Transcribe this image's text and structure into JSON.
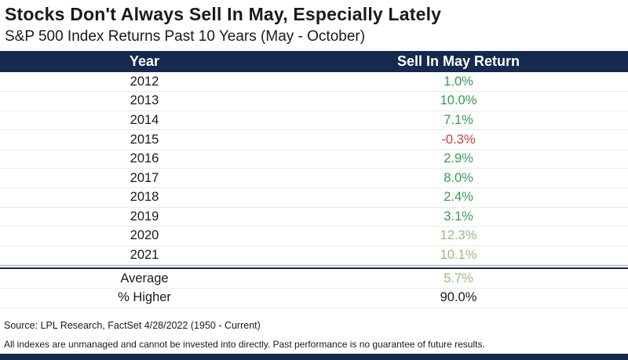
{
  "title": "Stocks Don't Always Sell In May, Especially Lately",
  "subtitle": "S&P 500 Index Returns Past 10 Years (May - October)",
  "table": {
    "headers": [
      "Year",
      "Sell In May Return"
    ],
    "rows": [
      {
        "year": "2012",
        "value": "1.0%",
        "tone": "green"
      },
      {
        "year": "2013",
        "value": "10.0%",
        "tone": "green"
      },
      {
        "year": "2014",
        "value": "7.1%",
        "tone": "green"
      },
      {
        "year": "2015",
        "value": "-0.3%",
        "tone": "red"
      },
      {
        "year": "2016",
        "value": "2.9%",
        "tone": "green"
      },
      {
        "year": "2017",
        "value": "8.0%",
        "tone": "green"
      },
      {
        "year": "2018",
        "value": "2.4%",
        "tone": "green"
      },
      {
        "year": "2019",
        "value": "3.1%",
        "tone": "green"
      },
      {
        "year": "2020",
        "value": "12.3%",
        "tone": "light"
      },
      {
        "year": "2021",
        "value": "10.1%",
        "tone": "light"
      }
    ],
    "summary": [
      {
        "label": "Average",
        "value": "5.7%",
        "tone": "light"
      },
      {
        "label": "% Higher",
        "value": "90.0%",
        "tone": "dark"
      }
    ]
  },
  "footer": {
    "source": "Source: LPL Research, FactSet 4/28/2022 (1950 - Current)",
    "disclaimer": "All indexes are unmanaged and cannot be invested into directly. Past performance is no guarantee of future results."
  },
  "colors": {
    "header_bg": "#152a4e",
    "positive": "#2f9e50",
    "positive_light": "#93be75",
    "negative": "#c9403e",
    "neutral_text": "#1a1a1a"
  },
  "chart_data": {
    "type": "table",
    "title": "Stocks Don't Always Sell In May, Especially Lately",
    "subtitle": "S&P 500 Index Returns Past 10 Years (May - October)",
    "columns": [
      "Year",
      "Sell In May Return (%)"
    ],
    "rows": [
      [
        "2012",
        1.0
      ],
      [
        "2013",
        10.0
      ],
      [
        "2014",
        7.1
      ],
      [
        "2015",
        -0.3
      ],
      [
        "2016",
        2.9
      ],
      [
        "2017",
        8.0
      ],
      [
        "2018",
        2.4
      ],
      [
        "2019",
        3.1
      ],
      [
        "2020",
        12.3
      ],
      [
        "2021",
        10.1
      ]
    ],
    "summary": {
      "average_percent": 5.7,
      "percent_higher": 90.0
    },
    "units": "percent",
    "source": "LPL Research, FactSet 4/28/2022 (1950 - Current)"
  }
}
